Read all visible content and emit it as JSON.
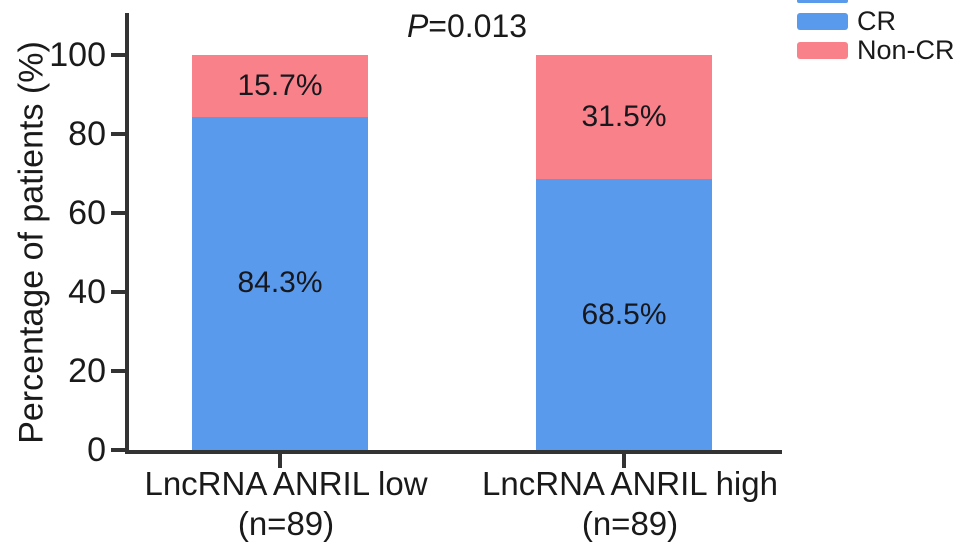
{
  "figure": {
    "p_label": {
      "prefix": "P",
      "rest": "=0.013"
    }
  },
  "chart_data": {
    "type": "bar",
    "stacked": true,
    "orientation": "vertical",
    "title": "",
    "annotation": "P=0.013",
    "categories": [
      {
        "label": "LncRNA ANRIL low",
        "sublabel": "(n=89)"
      },
      {
        "label": "LncRNA ANRIL high",
        "sublabel": "(n=89)"
      }
    ],
    "series": [
      {
        "name": "CR",
        "color": "#5a9aec",
        "values": [
          84.3,
          68.5
        ]
      },
      {
        "name": "Non-CR",
        "color": "#f9828a",
        "values": [
          15.7,
          31.5
        ]
      }
    ],
    "value_suffix": "%",
    "xlabel": "",
    "ylabel": "Percentage of patients (%)",
    "ylim": [
      0,
      100
    ],
    "yticks": [
      0,
      20,
      40,
      60,
      80,
      100
    ],
    "grid": false,
    "legend_position": "top-right",
    "colors": {
      "axis": "#333333",
      "text": "#1a1a1a"
    }
  }
}
